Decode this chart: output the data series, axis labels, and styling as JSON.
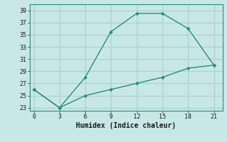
{
  "line1_x": [
    0,
    3,
    6,
    9,
    12,
    15,
    18,
    21
  ],
  "line1_y": [
    26,
    23,
    28,
    35.5,
    38.5,
    38.5,
    36,
    30
  ],
  "line2_x": [
    0,
    3,
    6,
    9,
    12,
    15,
    18,
    21
  ],
  "line2_y": [
    26,
    23,
    25,
    26,
    27,
    28,
    29.5,
    30
  ],
  "line_color": "#2e8b7a",
  "bg_color": "#c8e8e8",
  "grid_color": "#b0d0d0",
  "xlabel": "Humidex (Indice chaleur)",
  "xlim": [
    -0.5,
    22
  ],
  "ylim": [
    22.5,
    40
  ],
  "xticks": [
    0,
    3,
    6,
    9,
    12,
    15,
    18,
    21
  ],
  "yticks": [
    23,
    25,
    27,
    29,
    31,
    33,
    35,
    37,
    39
  ]
}
